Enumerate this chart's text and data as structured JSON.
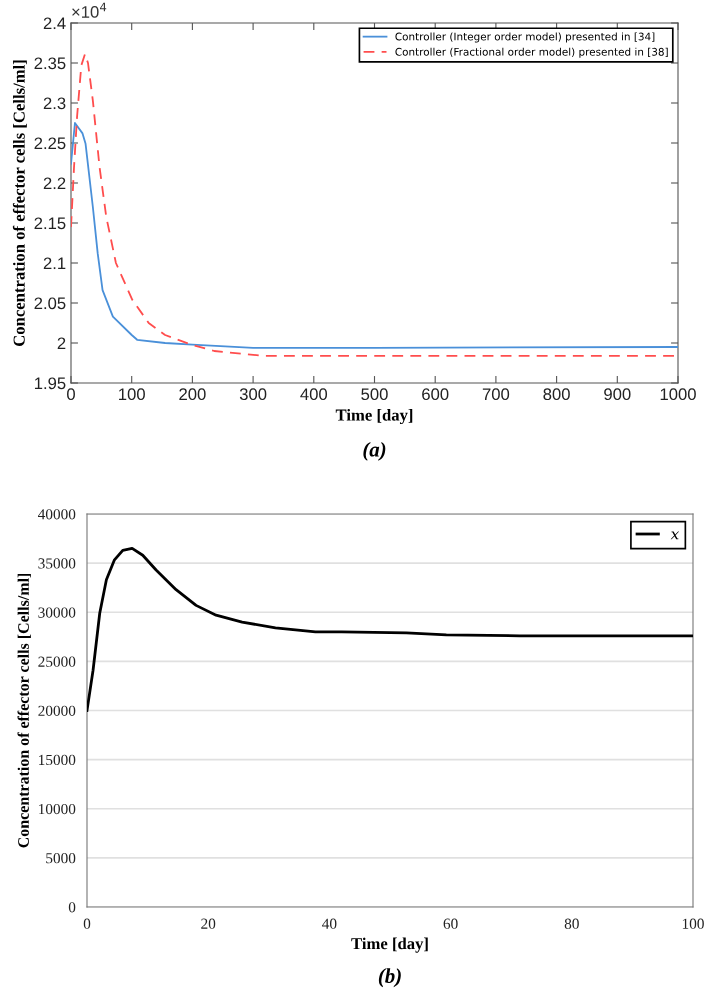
{
  "chart_data": [
    {
      "type": "line",
      "xlabel": "Time [day]",
      "ylabel": "Concentration of effector cells [Cells/ml]",
      "xlim": [
        0,
        1000
      ],
      "ylim": [
        1.95,
        2.4
      ],
      "xticks": [
        0,
        100,
        200,
        300,
        400,
        500,
        600,
        700,
        800,
        900,
        1000
      ],
      "yticks": [
        1.95,
        2,
        2.05,
        2.1,
        2.15,
        2.2,
        2.25,
        2.3,
        2.35,
        2.4
      ],
      "grid": false,
      "legend": "top right",
      "annotations": [
        "×10$^{4}$",
        "(a)"
      ],
      "series": [
        {
          "name": "Controller (Integer order model) presented in [34]",
          "color": "#4a90d9",
          "line_style": "solid",
          "x": [
            0,
            6.5,
            19,
            24,
            36,
            44,
            52,
            69,
            100,
            109,
            155,
            200,
            300,
            500,
            1000
          ],
          "values": [
            2.224,
            2.275,
            2.262,
            2.249,
            2.17,
            2.112,
            2.066,
            2.033,
            2.01,
            2.004,
            2.0,
            1.998,
            1.994,
            1.994,
            1.995
          ]
        },
        {
          "name": "Controller (Fractional order model) presented in [38]",
          "color": "#ff4d4d",
          "line_style": "dashed",
          "x": [
            0,
            5,
            10,
            17,
            23,
            28,
            36,
            47,
            58,
            74,
            101,
            128,
            155,
            198,
            236,
            317,
            1000
          ],
          "values": [
            2.145,
            2.22,
            2.283,
            2.347,
            2.361,
            2.35,
            2.303,
            2.22,
            2.158,
            2.1,
            2.054,
            2.025,
            2.01,
            1.998,
            1.99,
            1.984,
            1.984
          ]
        }
      ]
    },
    {
      "type": "line",
      "xlabel": "Time [day]",
      "ylabel": "Concentration of effector cells [Cells/ml]",
      "xlim": [
        0,
        100
      ],
      "ylim": [
        0,
        40000
      ],
      "xticks": [
        0,
        20,
        40,
        60,
        80,
        100
      ],
      "yticks": [
        0,
        5000,
        10000,
        15000,
        20000,
        25000,
        30000,
        35000,
        40000
      ],
      "grid": "y",
      "legend": "top right",
      "annotations": [
        "(b)"
      ],
      "series": [
        {
          "name": "x",
          "color": "#000000",
          "line_style": "solid",
          "x": [
            0,
            1,
            2.1,
            3.2,
            4.5,
            5.9,
            7.45,
            9.2,
            11.4,
            14.7,
            18,
            21.3,
            25.6,
            31.1,
            37.7,
            42,
            52.7,
            59.3,
            71.4,
            100
          ],
          "values": [
            20000,
            24100,
            29900,
            33300,
            35300,
            36300,
            36500,
            35800,
            34300,
            32300,
            30700,
            29700,
            29000,
            28400,
            28000,
            28000,
            27900,
            27700,
            27600,
            27600
          ]
        }
      ]
    }
  ]
}
